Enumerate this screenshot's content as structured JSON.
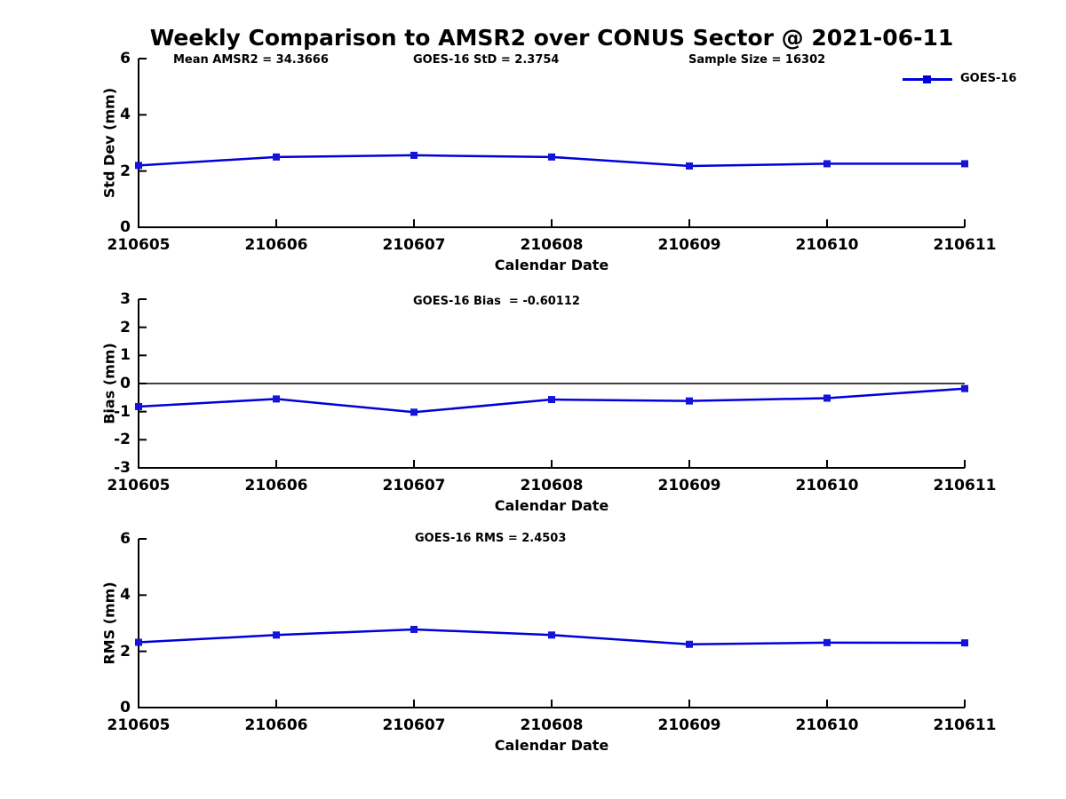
{
  "title": "Weekly Comparison to AMSR2 over CONUS Sector @ 2021-06-11",
  "legend": {
    "label": "GOES-16",
    "position": "top-right",
    "border": "none"
  },
  "colors": {
    "line": "#0000d8",
    "marker": "#1414dd",
    "axis": "#000000",
    "text": "#000000",
    "background": "#ffffff"
  },
  "chart_data": [
    {
      "type": "line",
      "subplot": "std-dev",
      "annotations": [
        "Mean AMSR2 = 34.3666",
        "GOES-16 StD = 2.3754",
        "Sample Size = 16302"
      ],
      "xlabel": "Calendar Date",
      "ylabel": "Std Dev (mm)",
      "x": [
        "210605",
        "210606",
        "210607",
        "210608",
        "210609",
        "210610",
        "210611"
      ],
      "series": [
        {
          "name": "GOES-16",
          "values": [
            2.2,
            2.5,
            2.56,
            2.5,
            2.18,
            2.26,
            2.26
          ]
        }
      ],
      "ylim": [
        0,
        6
      ],
      "yticks": [
        0,
        2,
        4,
        6
      ],
      "grid": false,
      "zero_line": false,
      "marker": "square",
      "legend_visible": true
    },
    {
      "type": "line",
      "subplot": "bias",
      "annotations": [
        "GOES-16 Bias  = -0.60112"
      ],
      "xlabel": "Calendar Date",
      "ylabel": "Bias (mm)",
      "x": [
        "210605",
        "210606",
        "210607",
        "210608",
        "210609",
        "210610",
        "210611"
      ],
      "series": [
        {
          "name": "GOES-16",
          "values": [
            -0.82,
            -0.55,
            -1.02,
            -0.57,
            -0.62,
            -0.52,
            -0.18
          ]
        }
      ],
      "ylim": [
        -3,
        3
      ],
      "yticks": [
        -3,
        -2,
        -1,
        0,
        1,
        2,
        3
      ],
      "grid": false,
      "zero_line": true,
      "marker": "square",
      "legend_visible": false
    },
    {
      "type": "line",
      "subplot": "rms",
      "annotations": [
        "GOES-16 RMS = 2.4503"
      ],
      "xlabel": "Calendar Date",
      "ylabel": "RMS (mm)",
      "x": [
        "210605",
        "210606",
        "210607",
        "210608",
        "210609",
        "210610",
        "210611"
      ],
      "series": [
        {
          "name": "GOES-16",
          "values": [
            2.32,
            2.58,
            2.78,
            2.58,
            2.25,
            2.31,
            2.3
          ]
        }
      ],
      "ylim": [
        0,
        6
      ],
      "yticks": [
        0,
        2,
        4,
        6
      ],
      "grid": false,
      "zero_line": false,
      "marker": "square",
      "legend_visible": true
    }
  ]
}
